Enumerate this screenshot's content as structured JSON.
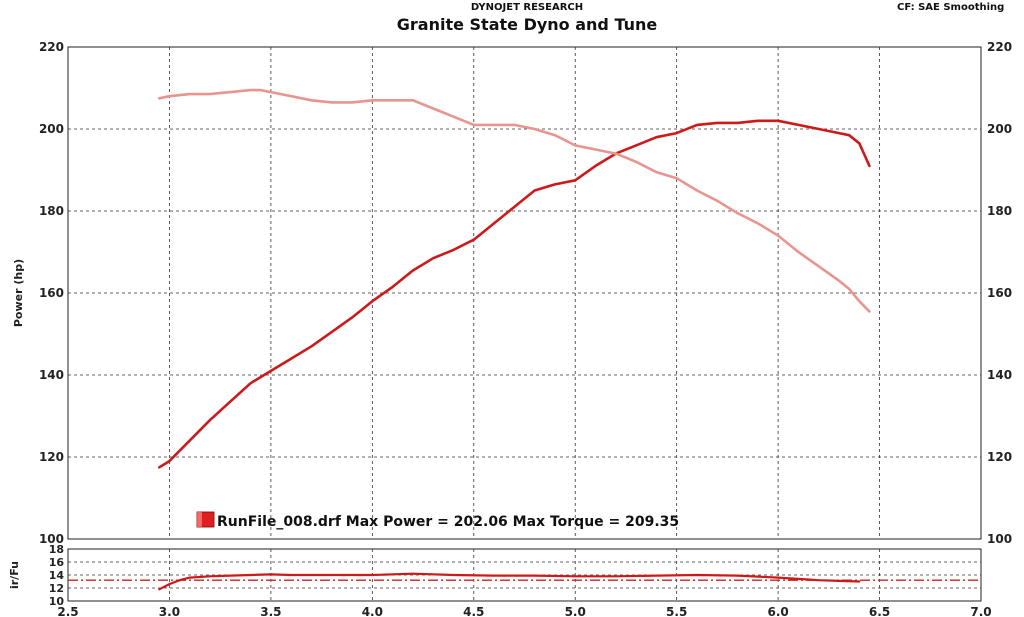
{
  "header": {
    "company": "DYNOJET RESEARCH",
    "title": "Granite State Dyno and Tune",
    "right_info": "CF: SAE  Smoothing"
  },
  "chart_data": [
    {
      "type": "line",
      "ylabel": "Power (hp)",
      "xlim": [
        2.5,
        7.0
      ],
      "ylim": [
        100,
        220
      ],
      "y_ticks": [
        100,
        120,
        140,
        160,
        180,
        200,
        220
      ],
      "grid": true,
      "legend": "RunFile_008.drf Max Power = 202.06 Max Torque = 209.35",
      "legend_color": "#e02020",
      "series": [
        {
          "color": "#cc1a1a",
          "x": [
            2.95,
            3.0,
            3.1,
            3.2,
            3.3,
            3.4,
            3.5,
            3.6,
            3.7,
            3.8,
            3.9,
            4.0,
            4.1,
            4.2,
            4.3,
            4.4,
            4.5,
            4.6,
            4.7,
            4.8,
            4.9,
            5.0,
            5.1,
            5.2,
            5.3,
            5.4,
            5.5,
            5.6,
            5.7,
            5.8,
            5.9,
            6.0,
            6.1,
            6.2,
            6.3,
            6.35,
            6.4,
            6.45
          ],
          "y": [
            117.5,
            119,
            124,
            129,
            133.5,
            138,
            141,
            144,
            147,
            150.5,
            154,
            158,
            161.5,
            165.5,
            168.5,
            170.5,
            173,
            177,
            181,
            185,
            186.5,
            187.5,
            191,
            194,
            196,
            198,
            199,
            201,
            201.5,
            201.5,
            202,
            202,
            201,
            200,
            199,
            198.5,
            196.5,
            191
          ]
        },
        {
          "color": "#e8958f",
          "x": [
            2.95,
            3.0,
            3.1,
            3.2,
            3.3,
            3.4,
            3.45,
            3.5,
            3.6,
            3.7,
            3.8,
            3.9,
            4.0,
            4.1,
            4.2,
            4.3,
            4.4,
            4.5,
            4.6,
            4.7,
            4.8,
            4.9,
            5.0,
            5.1,
            5.2,
            5.3,
            5.4,
            5.5,
            5.6,
            5.7,
            5.8,
            5.9,
            6.0,
            6.1,
            6.2,
            6.3,
            6.35,
            6.4,
            6.45
          ],
          "y": [
            207.5,
            208,
            208.5,
            208.5,
            209,
            209.5,
            209.5,
            209,
            208,
            207,
            206.5,
            206.5,
            207,
            207,
            207,
            205,
            203,
            201,
            201,
            201,
            200,
            198.5,
            196,
            195,
            194,
            192,
            189.5,
            188,
            185,
            182.5,
            179.5,
            177,
            174,
            170,
            166.5,
            163,
            161,
            158,
            155.5
          ]
        }
      ]
    },
    {
      "type": "line",
      "ylabel": "ir/Fu",
      "xlim": [
        2.5,
        7.0
      ],
      "ylim": [
        10,
        18
      ],
      "y_ticks": [
        10,
        12,
        14,
        16,
        18
      ],
      "x_ticks": [
        2.5,
        3.0,
        3.5,
        4.0,
        4.5,
        5.0,
        5.5,
        6.0,
        6.5,
        7.0
      ],
      "x_tick_labels": [
        "2.5",
        "3.0",
        "3.5",
        "4.0",
        "4.5",
        "5.0",
        "5.5",
        "6.0",
        "6.5",
        "7.0"
      ],
      "grid": true,
      "reference_line": 13.2,
      "series": [
        {
          "color": "#cc1a1a",
          "x": [
            2.95,
            3.0,
            3.05,
            3.1,
            3.2,
            3.3,
            3.4,
            3.5,
            3.6,
            3.8,
            4.0,
            4.2,
            4.4,
            4.6,
            4.8,
            5.0,
            5.2,
            5.4,
            5.6,
            5.8,
            6.0,
            6.1,
            6.2,
            6.3,
            6.4
          ],
          "y": [
            11.8,
            12.6,
            13.2,
            13.6,
            13.8,
            13.9,
            14.0,
            14.1,
            14.0,
            14.0,
            14.0,
            14.2,
            14.0,
            13.9,
            13.9,
            13.8,
            13.8,
            13.9,
            14.0,
            13.9,
            13.6,
            13.4,
            13.2,
            13.1,
            13.0
          ]
        }
      ]
    }
  ]
}
